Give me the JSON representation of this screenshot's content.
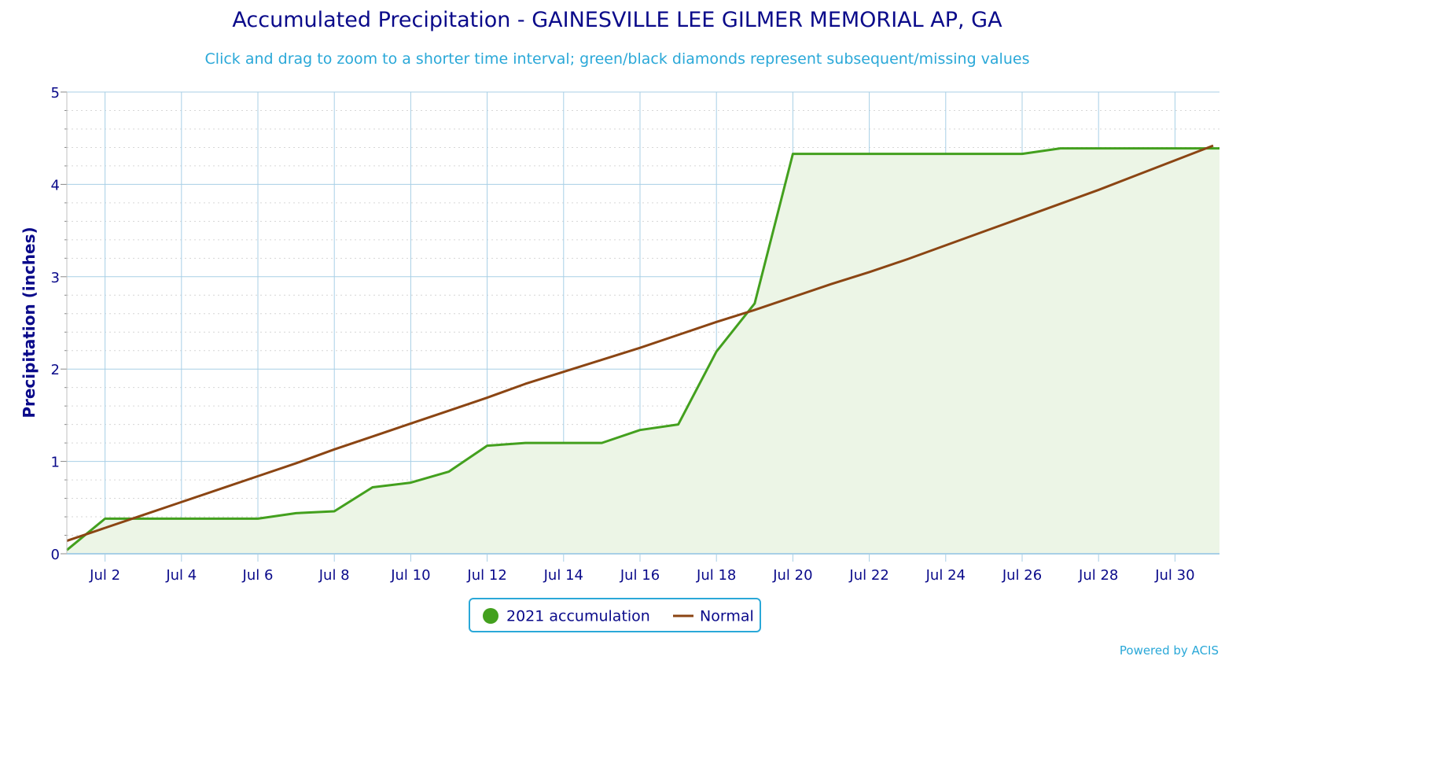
{
  "chart_data": {
    "type": "line",
    "title": "Accumulated Precipitation - GAINESVILLE LEE GILMER MEMORIAL AP, GA",
    "subtitle": "Click and drag to zoom to a shorter time interval; green/black diamonds represent subsequent/missing values",
    "ylabel": "Precipitation (inches)",
    "xlabel": "",
    "ylim": [
      0,
      5
    ],
    "yticks": [
      "0",
      "1",
      "2",
      "3",
      "4",
      "5"
    ],
    "x_tick_labels": [
      "Jul 2",
      "Jul 4",
      "Jul 6",
      "Jul 8",
      "Jul 10",
      "Jul 12",
      "Jul 14",
      "Jul 16",
      "Jul 18",
      "Jul 20",
      "Jul 22",
      "Jul 24",
      "Jul 26",
      "Jul 28",
      "Jul 30"
    ],
    "x": [
      "Jul 1",
      "Jul 2",
      "Jul 3",
      "Jul 4",
      "Jul 5",
      "Jul 6",
      "Jul 7",
      "Jul 8",
      "Jul 9",
      "Jul 10",
      "Jul 11",
      "Jul 12",
      "Jul 13",
      "Jul 14",
      "Jul 15",
      "Jul 16",
      "Jul 17",
      "Jul 18",
      "Jul 19",
      "Jul 20",
      "Jul 21",
      "Jul 22",
      "Jul 23",
      "Jul 24",
      "Jul 25",
      "Jul 26",
      "Jul 27",
      "Jul 28",
      "Jul 29",
      "Jul 30",
      "Jul 31"
    ],
    "grid": true,
    "legend_position": "bottom-center",
    "series": [
      {
        "name": "2021 accumulation",
        "color": "#43a01e",
        "fill": "#ecf5e6",
        "values": [
          0.04,
          0.38,
          0.38,
          0.38,
          0.38,
          0.38,
          0.44,
          0.46,
          0.72,
          0.77,
          0.89,
          1.17,
          1.2,
          1.2,
          1.2,
          1.34,
          1.4,
          2.19,
          2.71,
          4.33,
          4.33,
          4.33,
          4.33,
          4.33,
          4.33,
          4.33,
          4.39,
          4.39,
          4.39,
          4.39,
          4.39
        ]
      },
      {
        "name": "Normal",
        "color": "#8b4513",
        "values": [
          0.14,
          0.28,
          0.42,
          0.56,
          0.7,
          0.84,
          0.98,
          1.13,
          1.27,
          1.41,
          1.55,
          1.69,
          1.84,
          1.97,
          2.1,
          2.23,
          2.37,
          2.51,
          2.64,
          2.78,
          2.92,
          3.05,
          3.19,
          3.34,
          3.49,
          3.64,
          3.79,
          3.94,
          4.1,
          4.26,
          4.42
        ]
      }
    ]
  },
  "legend": {
    "items": [
      "2021 accumulation",
      "Normal"
    ]
  },
  "credit": "Powered by ACIS",
  "colors": {
    "title": "#0a0a8a",
    "subtitle": "#2aa8d8",
    "grid": "#a8cfe6"
  }
}
